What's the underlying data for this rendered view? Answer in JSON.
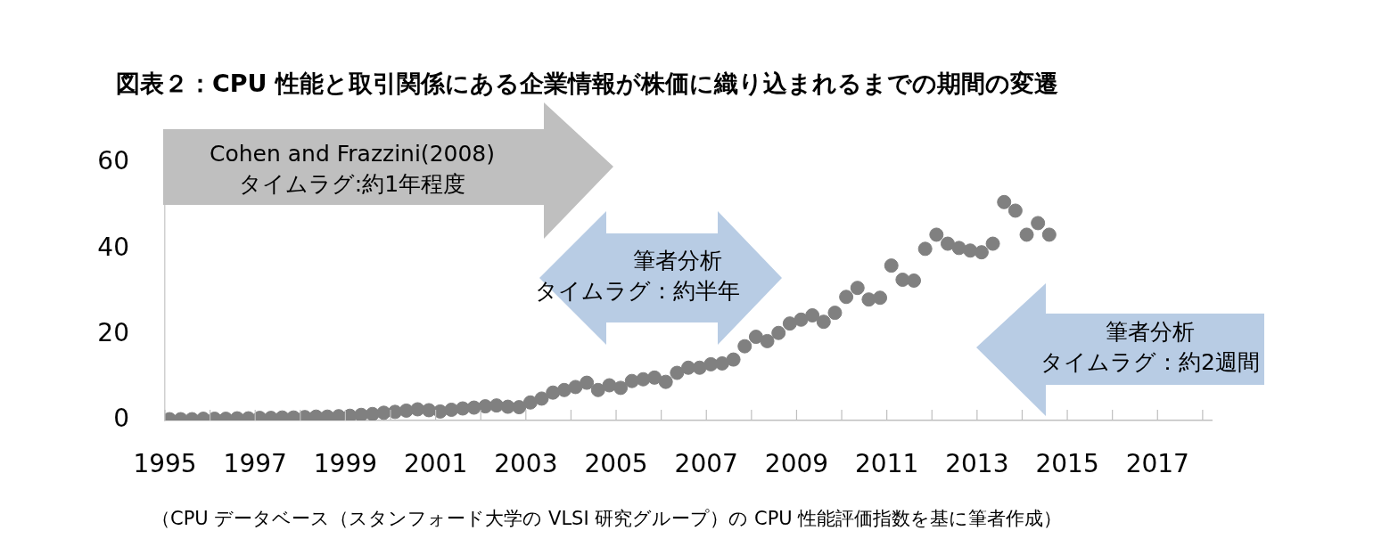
{
  "chart_data": {
    "type": "scatter",
    "title": "図表２：CPU 性能と取引関係にある企業情報が株価に織り込まれるまでの期間の変遷",
    "x": [
      1995.1,
      1995.35,
      1995.6,
      1995.85,
      1996.1,
      1996.35,
      1996.6,
      1996.85,
      1997.1,
      1997.35,
      1997.6,
      1997.85,
      1998.1,
      1998.35,
      1998.6,
      1998.85,
      1999.1,
      1999.35,
      1999.6,
      1999.85,
      2000.1,
      2000.35,
      2000.6,
      2000.85,
      2001.1,
      2001.35,
      2001.6,
      2001.85,
      2002.1,
      2002.35,
      2002.6,
      2002.85,
      2003.1,
      2003.35,
      2003.6,
      2003.85,
      2004.1,
      2004.35,
      2004.6,
      2004.85,
      2005.1,
      2005.35,
      2005.6,
      2005.85,
      2006.1,
      2006.35,
      2006.6,
      2006.85,
      2007.1,
      2007.35,
      2007.6,
      2007.85,
      2008.1,
      2008.35,
      2008.6,
      2008.85,
      2009.1,
      2009.35,
      2009.6,
      2009.85,
      2010.1,
      2010.35,
      2010.6,
      2010.85,
      2011.1,
      2011.35,
      2011.6,
      2011.85,
      2012.1,
      2012.35,
      2012.6,
      2012.85,
      2013.1,
      2013.35,
      2013.6,
      2013.85,
      2014.1,
      2014.35,
      2014.6
    ],
    "series": [
      {
        "color": "#808080",
        "values": [
          0.3,
          0.3,
          0.3,
          0.4,
          0.4,
          0.4,
          0.5,
          0.5,
          0.6,
          0.6,
          0.7,
          0.7,
          0.8,
          0.9,
          0.9,
          1.0,
          1.1,
          1.3,
          1.5,
          1.8,
          2.0,
          2.3,
          2.6,
          2.4,
          2.1,
          2.5,
          2.8,
          3.0,
          3.3,
          3.5,
          3.2,
          3.1,
          4.2,
          5.1,
          6.5,
          7.1,
          7.8,
          8.8,
          7.1,
          8.2,
          7.6,
          9.2,
          9.6,
          10.0,
          9.0,
          11.1,
          12.3,
          12.3,
          13.1,
          13.3,
          14.2,
          17.3,
          19.5,
          18.5,
          20.4,
          22.6,
          23.5,
          24.5,
          23.0,
          25.1,
          28.8,
          30.9,
          28.2,
          28.6,
          36.1,
          32.8,
          32.6,
          40.0,
          43.3,
          41.2,
          40.2,
          39.6,
          39.2,
          41.2,
          50.9,
          48.9,
          43.3,
          46.0,
          43.3
        ]
      }
    ],
    "xlim": [
      1995,
      2018.2
    ],
    "xticks": [
      1995,
      {
        "value": 1996,
        "label": null
      },
      1997,
      {
        "value": 1998,
        "label": null
      },
      1999,
      {
        "value": 2000,
        "label": null
      },
      2001,
      {
        "value": 2002,
        "label": null
      },
      2003,
      {
        "value": 2004,
        "label": null
      },
      2005,
      {
        "value": 2006,
        "label": null
      },
      2007,
      {
        "value": 2008,
        "label": null
      },
      2009,
      {
        "value": 2010,
        "label": null
      },
      2011,
      {
        "value": 2012,
        "label": null
      },
      2013,
      {
        "value": 2014,
        "label": null
      },
      2015,
      {
        "value": 2016,
        "label": null
      },
      2017,
      {
        "value": 2018,
        "label": null
      }
    ],
    "ylim": [
      0,
      60
    ],
    "yticks": [
      0,
      20,
      40,
      60
    ],
    "grid": false,
    "legend": false,
    "marker": "circle",
    "annotations": [
      "Cohen and Frazzini(2008)",
      "タイムラグ:約1年程度",
      "筆者分析",
      "タイムラグ：約半年",
      "筆者分析",
      "タイムラグ：約2週間",
      "（CPU データベース（スタンフォード大学の VLSI 研究グループ）の CPU 性能評価指数を基に筆者作成）"
    ]
  }
}
